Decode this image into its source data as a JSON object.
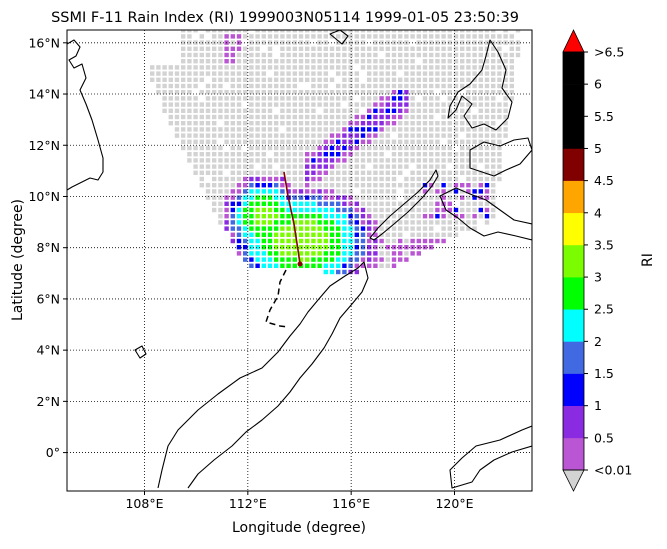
{
  "title": "SSMI F-11 Rain Index (RI) 1999003N05114 1999-01-05 23:50:39",
  "map": {
    "xlabel": "Longitude (degree)",
    "ylabel": "Latitude (degree)",
    "lon_range": [
      105.0,
      123.0
    ],
    "lat_range": [
      -1.5,
      16.5
    ],
    "lon_ticks": [
      {
        "value": 108,
        "label": "108°E"
      },
      {
        "value": 112,
        "label": "112°E"
      },
      {
        "value": 116,
        "label": "116°E"
      },
      {
        "value": 120,
        "label": "120°E"
      }
    ],
    "lat_ticks": [
      {
        "value": 0,
        "label": "0°"
      },
      {
        "value": 2,
        "label": "2°N"
      },
      {
        "value": 4,
        "label": "4°N"
      },
      {
        "value": 6,
        "label": "6°N"
      },
      {
        "value": 8,
        "label": "8°N"
      },
      {
        "value": 10,
        "label": "10°N"
      },
      {
        "value": 12,
        "label": "12°N"
      },
      {
        "value": 14,
        "label": "14°N"
      },
      {
        "value": 16,
        "label": "16°N"
      }
    ],
    "grid": "dotted",
    "coastline_color": "#000000",
    "no_rain_color": "#d3d3d3",
    "track_color": "#8b0000"
  },
  "colorbar": {
    "label": "RI",
    "bounds_labels": [
      "<0.01",
      "0.5",
      "1",
      "1.5",
      "2",
      "2.5",
      "3",
      "3.5",
      "4",
      "4.5",
      "5",
      "5.5",
      "6",
      ">6.5"
    ],
    "colors": [
      "#ba55d3",
      "#8a2be2",
      "#0000ff",
      "#4169e1",
      "#00ffff",
      "#00ff00",
      "#7cfc00",
      "#ffff00",
      "#ffa500",
      "#800000",
      "#000000",
      "#000000",
      "#000000"
    ],
    "under_color": "#d3d3d3",
    "over_color": "#ff0000"
  }
}
